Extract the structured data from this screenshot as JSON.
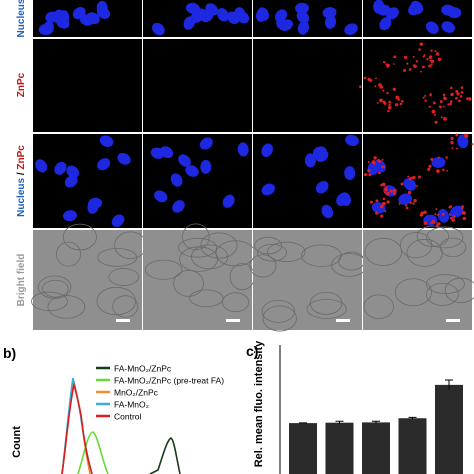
{
  "panel_a": {
    "row_labels": [
      {
        "text": "Nucleus",
        "color": "#1f5fbf"
      },
      {
        "text": "ZnPc",
        "color": "#c01818"
      },
      {
        "text": "Nucleus",
        "color": "#1f5fbf",
        "sep": " / "
      },
      {
        "text": "Bright field",
        "color": "#9a9a9a"
      }
    ],
    "row3_second": {
      "text": "ZnPc",
      "color": "#c01818"
    }
  },
  "panel_b": {
    "label": "b)",
    "y_label": "Count",
    "legend": [
      {
        "name": "FA-MnO₂/ZnPc",
        "color": "#173d17"
      },
      {
        "name": "FA-MnO₂/ZnPc  (pre-treat FA)",
        "color": "#6ad83a"
      },
      {
        "name": "MnO₂/ZnPc",
        "color": "#f0902f"
      },
      {
        "name": "FA-MnO₂",
        "color": "#3aaee0"
      },
      {
        "name": "Control",
        "color": "#d81e1e"
      }
    ]
  },
  "panel_c": {
    "label": "c)",
    "y_label": "Rel. mean fluo. intensity",
    "values": [
      1.0,
      1.03,
      1.05,
      1.35,
      3.75
    ],
    "errors": [
      0.02,
      0.1,
      0.08,
      0.06,
      0.35
    ],
    "color": "#2b2b2b"
  }
}
